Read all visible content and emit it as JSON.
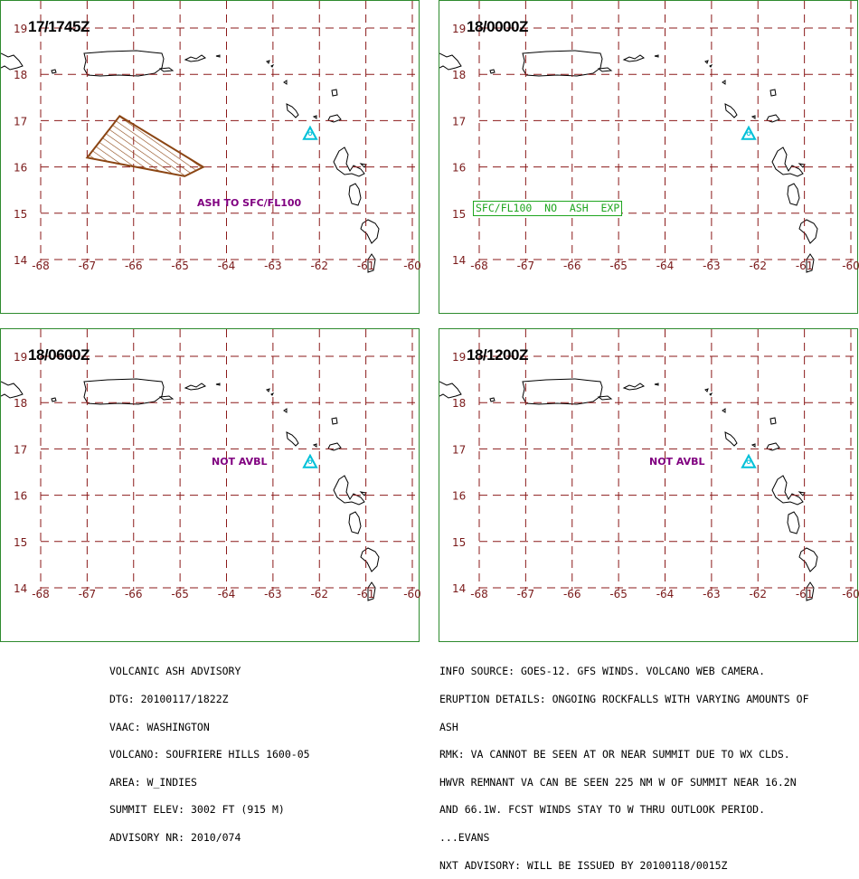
{
  "panels": [
    {
      "title": "17/1745Z",
      "label": "ASH TO SFC/FL100",
      "label_type": "ash"
    },
    {
      "title": "18/0000Z",
      "label": "SFC/FL100  NO  ASH  EXP",
      "label_type": "box"
    },
    {
      "title": "18/0600Z",
      "label": "NOT AVBL",
      "label_type": "plain"
    },
    {
      "title": "18/1200Z",
      "label": "NOT AVBL",
      "label_type": "plain"
    }
  ],
  "axes": {
    "lat_labels": [
      "19",
      "18",
      "17",
      "16",
      "15",
      "14"
    ],
    "lon_labels": [
      "-68",
      "-67",
      "-66",
      "-65",
      "-64",
      "-63",
      "-62",
      "-61",
      "-60"
    ],
    "lat_range": [
      14,
      19
    ],
    "lon_range": [
      -68,
      -60
    ]
  },
  "volcano": {
    "lon": -62.2,
    "lat": 16.7,
    "symbol": "triangle"
  },
  "ash_polygon": [
    [
      -67.0,
      16.2
    ],
    [
      -66.3,
      17.1
    ],
    [
      -64.5,
      16.0
    ],
    [
      -64.9,
      15.8
    ]
  ],
  "colors": {
    "border": "#2e8b2e",
    "grid": "#8b1a1a",
    "ticks": "#7a1a1a",
    "volcano": "#00c0d8",
    "ash": "#8b4513",
    "label_purple": "#800080",
    "box_green": "#1fa51f"
  },
  "advisory_left": [
    "VOLCANIC ASH ADVISORY",
    "DTG: 20100117/1822Z",
    "VAAC: WASHINGTON",
    "VOLCANO: SOUFRIERE HILLS 1600-05",
    "AREA: W_INDIES",
    "SUMMIT ELEV: 3002 FT (915 M)",
    "ADVISORY NR: 2010/074"
  ],
  "advisory_right": [
    "INFO SOURCE: GOES-12. GFS WINDS. VOLCANO WEB CAMERA.",
    "ERUPTION DETAILS: ONGOING ROCKFALLS WITH VARYING AMOUNTS OF",
    "ASH",
    "RMK: VA CANNOT BE SEEN AT OR NEAR SUMMIT DUE TO WX CLDS.",
    "HWVR REMNANT VA CAN BE SEEN 225 NM W OF SUMMIT NEAR 16.2N",
    "AND 66.1W. FCST WINDS STAY TO W THRU OUTLOOK PERIOD.",
    "...EVANS",
    "NXT ADVISORY: WILL BE ISSUED BY 20100118/0015Z"
  ]
}
